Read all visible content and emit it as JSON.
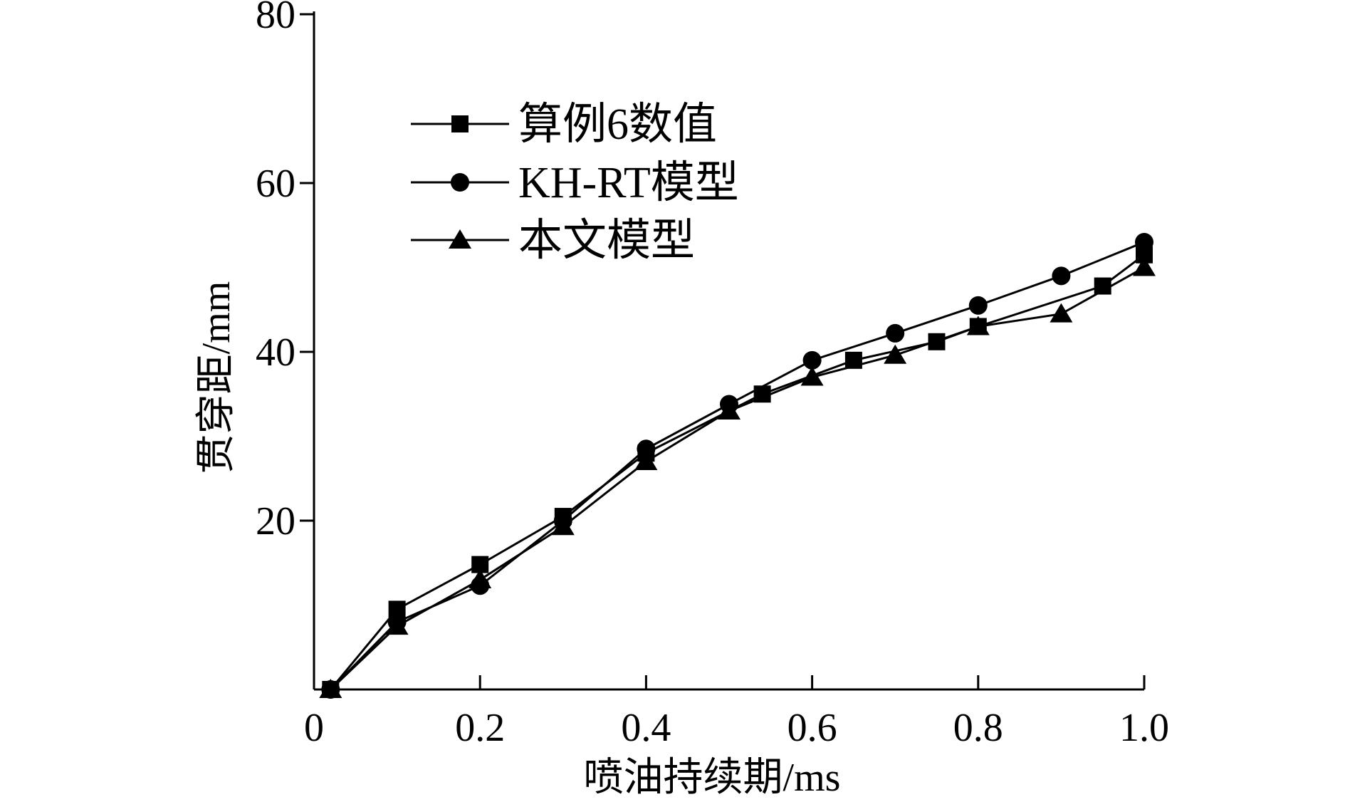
{
  "chart_data": {
    "type": "line",
    "xlabel": "喷油持续期/ms",
    "ylabel": "贯穿距/mm",
    "xlim": [
      0,
      1.0
    ],
    "ylim": [
      0,
      80
    ],
    "x_ticks": [
      "0",
      "0.2",
      "0.4",
      "0.6",
      "0.8",
      "1.0"
    ],
    "x_tick_values": [
      0,
      0.2,
      0.4,
      0.6,
      0.8,
      1.0
    ],
    "y_ticks": [
      "20",
      "40",
      "60",
      "80"
    ],
    "y_tick_values": [
      20,
      40,
      60,
      80
    ],
    "grid": false,
    "legend_position": "top-left",
    "series": [
      {
        "name": "算例6数值",
        "marker": "square",
        "x": [
          0.02,
          0.1,
          0.2,
          0.3,
          0.4,
          0.54,
          0.65,
          0.75,
          0.8,
          0.95,
          1.0
        ],
        "y": [
          0,
          9.5,
          14.8,
          20.5,
          28.0,
          35.0,
          39.0,
          41.2,
          43.0,
          47.8,
          51.5
        ]
      },
      {
        "name": "KH-RT模型",
        "marker": "circle",
        "x": [
          0.02,
          0.1,
          0.2,
          0.3,
          0.4,
          0.5,
          0.6,
          0.7,
          0.8,
          0.9,
          1.0
        ],
        "y": [
          0,
          8.0,
          12.3,
          20.0,
          28.5,
          33.8,
          39.0,
          42.2,
          45.5,
          49.0,
          53.0
        ]
      },
      {
        "name": "本文模型",
        "marker": "triangle",
        "x": [
          0.02,
          0.1,
          0.2,
          0.3,
          0.4,
          0.5,
          0.6,
          0.7,
          0.8,
          0.9,
          1.0
        ],
        "y": [
          0,
          7.5,
          13.0,
          19.3,
          27.0,
          33.0,
          37.0,
          39.6,
          43.0,
          44.5,
          50.0
        ]
      }
    ]
  }
}
